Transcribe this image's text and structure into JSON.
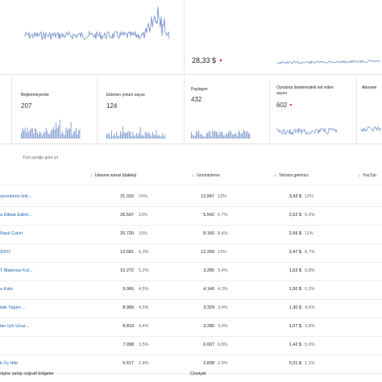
{
  "summary": {
    "value": "28,33 $",
    "trend_color": "#d93025"
  },
  "cards": [
    {
      "label": "Beğenmeyenler",
      "value": "207",
      "trend": ""
    },
    {
      "label": "Eklenen yorum sayısı",
      "value": "124",
      "trend": ""
    },
    {
      "label": "Paylaşım",
      "value": "432",
      "trend": ""
    },
    {
      "label": "Oynatma listelerindeki net video sayısı",
      "value": "602",
      "trend": "down"
    },
    {
      "label": "Abonele",
      "value": "",
      "trend": ""
    }
  ],
  "table": {
    "filter_label": "Tüm içeriğe göre sıl",
    "headers": {
      "watch_time": "İzlenme süresi (dakika)",
      "views": "Görüntüleme",
      "revenue": "Tahmini gelirimiz",
      "last": "YouTub"
    },
    "rows": [
      {
        "title": "yeceklerin İzle...",
        "watch": "31.316",
        "watch_pct": "16%",
        "views": "12.847",
        "views_pct": "13%",
        "rev": "3,43 $",
        "rev_pct": "12%"
      },
      {
        "title": "a Dikkat Edilm...",
        "watch": "26.597",
        "watch_pct": "13%",
        "views": "5.542",
        "views_pct": "5,7%",
        "rev": "2,62 $",
        "rev_pct": "9,2%"
      },
      {
        "title": "Nasıl Çıkılır",
        "watch": "20.720",
        "watch_pct": "10%",
        "views": "8.150",
        "views_pct": "8,4%",
        "rev": "2,99 $",
        "rev_pct": "11%"
      },
      {
        "title": "(DIY)",
        "watch": "12.681",
        "watch_pct": "6,3%",
        "views": "12.269",
        "views_pct": "13%",
        "rev": "2,47 $",
        "rev_pct": "8,7%"
      },
      {
        "title": "T Makinesi Kul...",
        "watch": "10.272",
        "watch_pct": "5,2%",
        "views": "3.285",
        "views_pct": "3,4%",
        "rev": "1,63 $",
        "rev_pct": "5,8%"
      },
      {
        "title": "u Kabı",
        "watch": "9.066",
        "watch_pct": "4,5%",
        "views": "4.140",
        "views_pct": "4,3%",
        "rev": "1,50 $",
        "rev_pct": "5,3%"
      },
      {
        "title": "tatlı Yapım ...",
        "watch": "8.989",
        "watch_pct": "4,5%",
        "views": "3.329",
        "views_pct": "3,4%",
        "rev": "1,30 $",
        "rev_pct": "4,6%"
      },
      {
        "title": "ları İçin Ucuz...",
        "watch": "8.819",
        "watch_pct": "4,4%",
        "views": "3.285",
        "views_pct": "3,4%",
        "rev": "1,07 $",
        "rev_pct": "3,8%"
      },
      {
        "title": "",
        "watch": "7.098",
        "watch_pct": "3,5%",
        "views": "6.607",
        "views_pct": "6,8%",
        "rev": "1,42 $",
        "rev_pct": "5,0%"
      },
      {
        "title": "k Üç Hile",
        "watch": "5.617",
        "watch_pct": "2,8%",
        "views": "2.838",
        "views_pct": "2,9%",
        "rev": "0,31 $",
        "rev_pct": "1,1%"
      }
    ]
  },
  "bottom": {
    "left_title": "rişine sahip coğrafi bölgeler",
    "right_title": "Cinsiyet"
  },
  "colors": {
    "spark": "#6f8fc9",
    "link": "#1a5fb4",
    "down": "#d93025"
  }
}
